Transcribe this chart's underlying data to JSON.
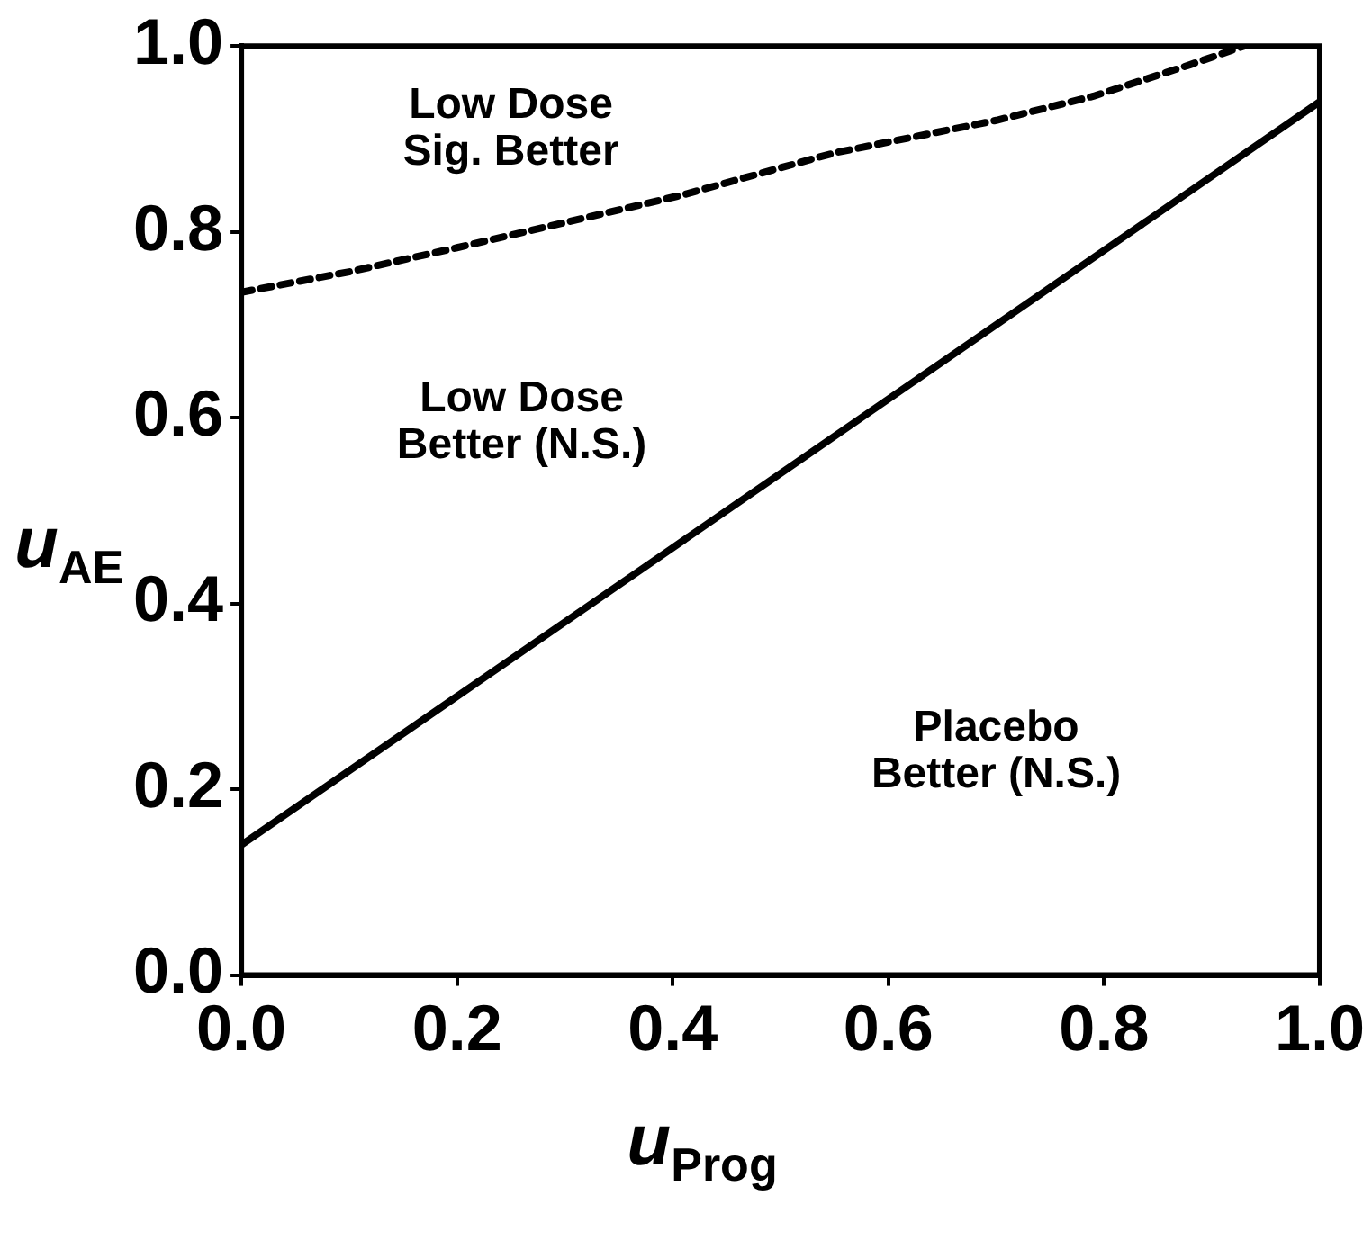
{
  "chart_data": {
    "type": "line",
    "xlabel": "u$_{Prog}$",
    "ylabel": "u$_{AE}$",
    "xlim": [
      0,
      1
    ],
    "ylim": [
      0,
      1
    ],
    "xticks": [
      {
        "value": 0,
        "label": "0.0"
      },
      {
        "value": 0.2,
        "label": "0.2"
      },
      {
        "value": 0.4,
        "label": "0.4"
      },
      {
        "value": 0.6,
        "label": "0.6"
      },
      {
        "value": 0.8,
        "label": "0.8"
      },
      {
        "value": 1,
        "label": "1.0"
      }
    ],
    "yticks": [
      {
        "value": 0,
        "label": "0.0"
      },
      {
        "value": 0.2,
        "label": "0.2"
      },
      {
        "value": 0.4,
        "label": "0.4"
      },
      {
        "value": 0.6,
        "label": "0.6"
      },
      {
        "value": 0.8,
        "label": "0.8"
      },
      {
        "value": 1,
        "label": "1.0"
      }
    ],
    "marker": "none",
    "series": [
      {
        "color": "#000000",
        "line_style": "solid",
        "x": [
          0,
          0.2,
          0.4,
          0.6,
          0.8,
          1
        ],
        "values": [
          0.14,
          0.3,
          0.46,
          0.62,
          0.78,
          0.94
        ]
      },
      {
        "color": "#000000",
        "line_style": "dashed",
        "x": [
          0,
          0.1,
          0.2,
          0.3,
          0.41,
          0.55,
          0.7,
          0.79,
          0.88,
          0.93
        ],
        "values": [
          0.735,
          0.757,
          0.783,
          0.81,
          0.84,
          0.885,
          0.92,
          0.946,
          0.98,
          1
        ]
      }
    ],
    "annotations": [
      "Low Dose\nSig. Better",
      "Low Dose\nBetter (N.S.)",
      "Placebo\nBetter (N.S.)"
    ]
  }
}
